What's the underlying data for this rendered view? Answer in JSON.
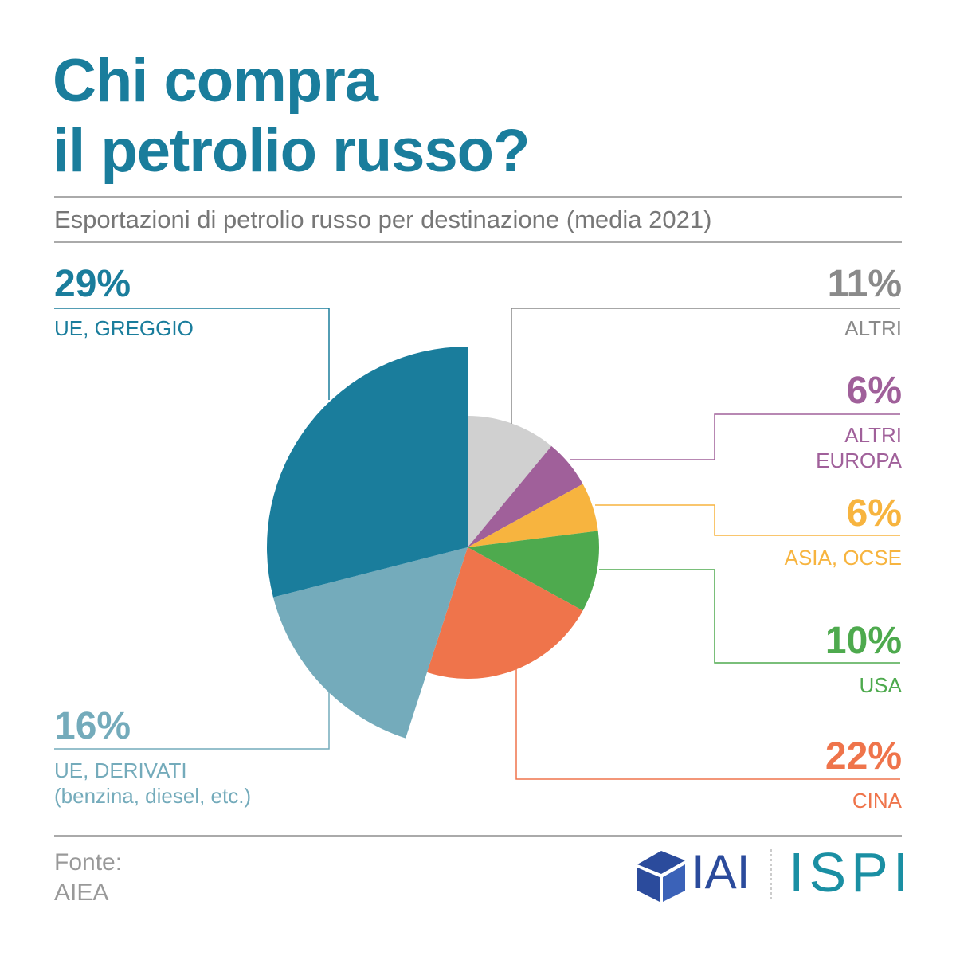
{
  "chart_data": {
    "type": "pie",
    "title": "Chi compra\nil petrolio russo?",
    "subtitle": "Esportazioni di petrolio russo per destinazione (media 2021)",
    "categories": [
      "ALTRI",
      "ALTRI\nEUROPA",
      "ASIA, OCSE",
      "USA",
      "CINA",
      "UE, DERIVATI\n(benzina, diesel, etc.)",
      "UE, GREGGIO"
    ],
    "values": [
      11,
      6,
      6,
      10,
      22,
      16,
      29
    ],
    "value_labels": [
      "11%",
      "6%",
      "6%",
      "10%",
      "22%",
      "16%",
      "29%"
    ],
    "colors": [
      "#d0d0d0",
      "#a0609a",
      "#f7b43f",
      "#4eaa4e",
      "#ef744b",
      "#74abbb",
      "#1a7d9c"
    ],
    "text_colors": [
      "#8a8a8a",
      "#a0609a",
      "#f7b43f",
      "#4eaa4e",
      "#ef744b",
      "#74abbb",
      "#1a7d9c"
    ],
    "source": "Fonte:\nAIEA",
    "logos": [
      "IAI",
      "ISPI"
    ]
  }
}
